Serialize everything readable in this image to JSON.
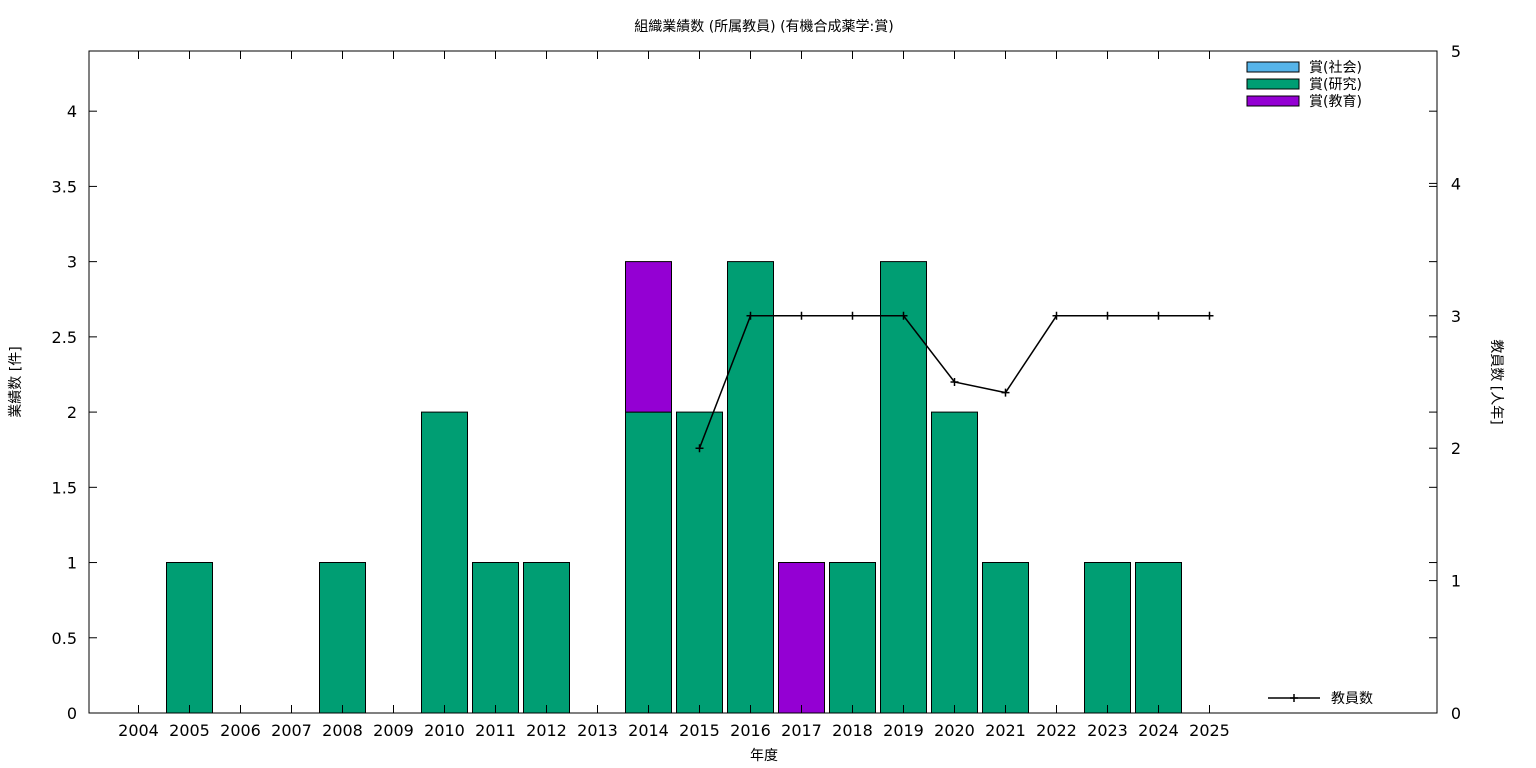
{
  "chart_data": {
    "type": "bar",
    "title": "組織業績数 (所属教員) (有機合成薬学:賞)",
    "xlabel": "年度",
    "ylabel": "業績数 [件]",
    "y2label": "教員数 [人年]",
    "categories": [
      "2004",
      "2005",
      "2006",
      "2007",
      "2008",
      "2009",
      "2010",
      "2011",
      "2012",
      "2013",
      "2014",
      "2015",
      "2016",
      "2017",
      "2018",
      "2019",
      "2020",
      "2021",
      "2022",
      "2023",
      "2024",
      "2025"
    ],
    "ylim": [
      0,
      4.4
    ],
    "yticks": [
      "0",
      "0.5",
      "1",
      "1.5",
      "2",
      "2.5",
      "3",
      "3.5",
      "4"
    ],
    "y2lim": [
      0,
      5
    ],
    "y2ticks": [
      "0",
      "1",
      "2",
      "3",
      "4",
      "5"
    ],
    "stacked": true,
    "series": [
      {
        "name": "賞(社会)",
        "color": "#56b4e9",
        "values": [
          0,
          0,
          0,
          0,
          0,
          0,
          0,
          0,
          0,
          0,
          0,
          0,
          0,
          0,
          0,
          0,
          0,
          0,
          0,
          0,
          0,
          0
        ]
      },
      {
        "name": "賞(研究)",
        "color": "#009e73",
        "values": [
          0,
          1,
          0,
          0,
          1,
          0,
          2,
          1,
          1,
          0,
          2,
          2,
          3,
          0,
          1,
          3,
          2,
          1,
          0,
          1,
          1,
          0
        ]
      },
      {
        "name": "賞(教育)",
        "color": "#9400d3",
        "values": [
          0,
          0,
          0,
          0,
          0,
          0,
          0,
          0,
          0,
          0,
          1,
          0,
          0,
          1,
          0,
          0,
          0,
          0,
          0,
          0,
          0,
          0
        ]
      }
    ],
    "line": {
      "name": "教員数",
      "axis": "y2",
      "color": "#000000",
      "points": [
        {
          "x": "2015",
          "y": 2
        },
        {
          "x": "2016",
          "y": 3
        },
        {
          "x": "2017",
          "y": 3
        },
        {
          "x": "2018",
          "y": 3
        },
        {
          "x": "2019",
          "y": 3
        },
        {
          "x": "2020",
          "y": 2.5
        },
        {
          "x": "2021",
          "y": 2.42
        },
        {
          "x": "2022",
          "y": 3
        },
        {
          "x": "2023",
          "y": 3
        },
        {
          "x": "2024",
          "y": 3
        },
        {
          "x": "2025",
          "y": 3
        }
      ]
    },
    "legend_position": "top-right",
    "line_legend_position": "bottom-right",
    "grid": false
  }
}
